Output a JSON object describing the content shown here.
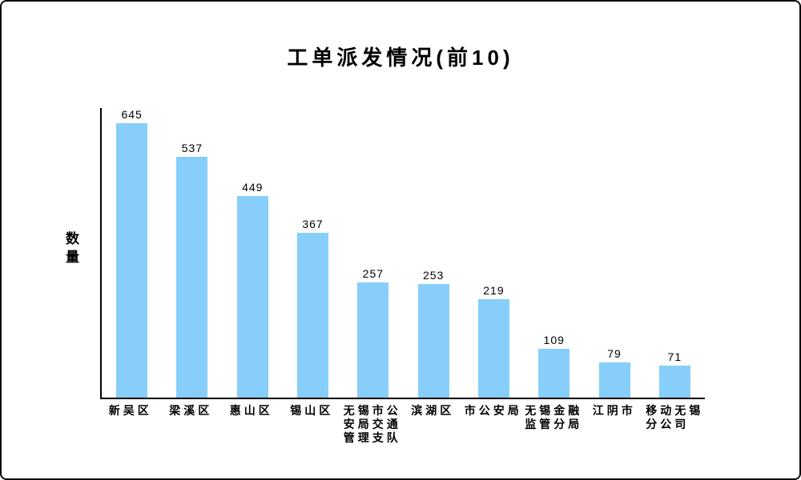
{
  "window": {
    "background_color": "#ffffff",
    "border_color": "#0a0a0a"
  },
  "chart_data": {
    "type": "bar",
    "title": "工单派发情况(前10)",
    "xlabel": "",
    "ylabel": "数量",
    "ylabel_display": "数\n量",
    "categories": [
      "新吴区",
      "梁溪区",
      "惠山区",
      "锡山区",
      "无锡市公安局交通管理支队",
      "滨湖区",
      "市公安局",
      "无锡金融监管分局",
      "江阴市",
      "移动无锡分公司"
    ],
    "category_display": [
      "新吴区",
      "梁溪区",
      "惠山区",
      "锡山区",
      "无锡市公\n安局交通\n管理支队",
      "滨湖区",
      "市公安局",
      "无锡金融\n监管分局",
      "江阴市",
      "移动无锡\n分公司"
    ],
    "values": [
      645,
      537,
      449,
      367,
      257,
      253,
      219,
      109,
      79,
      71
    ],
    "ylim": [
      0,
      645
    ],
    "bar_color": "#87CEFA",
    "text_color": "#000000",
    "value_labels_shown": true,
    "y_tick_labels_shown": false,
    "grid": false,
    "legend_position": "none"
  }
}
